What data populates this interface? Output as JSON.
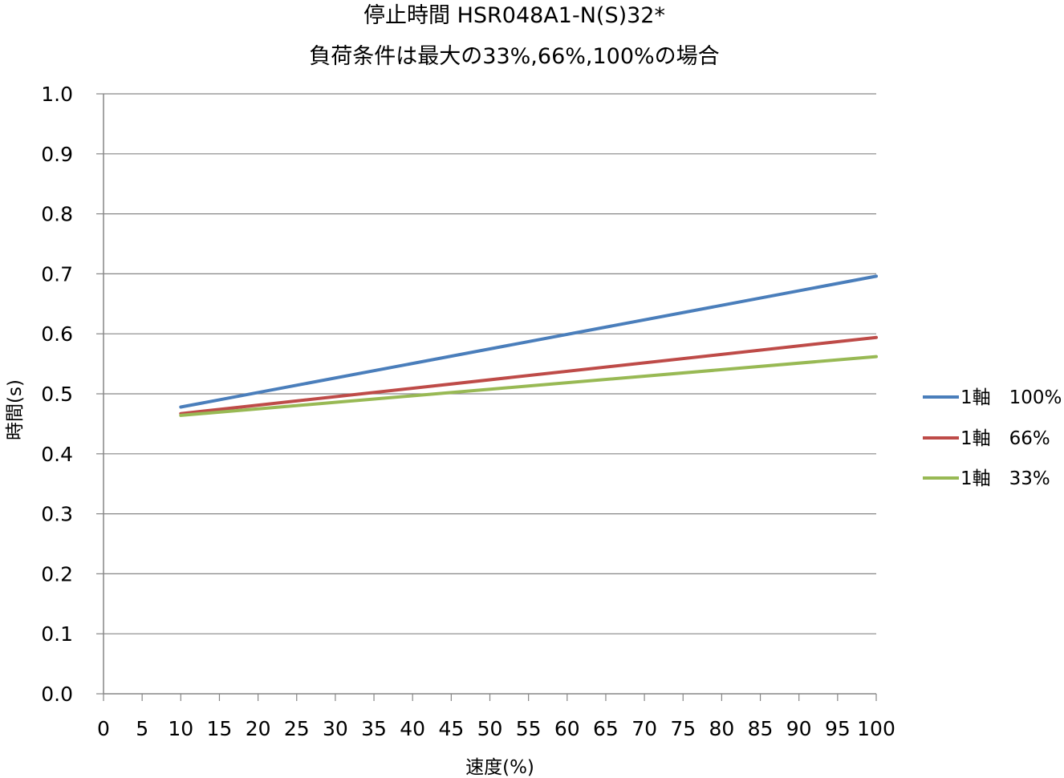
{
  "chart_data": {
    "type": "line",
    "title_line1": "停止時間 HSR048A1-N(S)32*",
    "title_line2": "負荷条件は最大の33%,66%,100%の場合",
    "xlabel": "速度(%)",
    "ylabel": "時間(s)",
    "xlim": [
      0,
      100
    ],
    "ylim": [
      0.0,
      1.0
    ],
    "x_ticks": [
      0,
      5,
      10,
      15,
      20,
      25,
      30,
      35,
      40,
      45,
      50,
      55,
      60,
      65,
      70,
      75,
      80,
      85,
      90,
      95,
      100
    ],
    "y_ticks": [
      "0.0",
      "0.1",
      "0.2",
      "0.3",
      "0.4",
      "0.5",
      "0.6",
      "0.7",
      "0.8",
      "0.9",
      "1.0"
    ],
    "grid": "horizontal",
    "legend_position": "right",
    "series": [
      {
        "name": "1軸　100%",
        "color": "#4A7EBB",
        "x": [
          10,
          100
        ],
        "y": [
          0.478,
          0.696
        ]
      },
      {
        "name": "1軸　66%",
        "color": "#BE4B48",
        "x": [
          10,
          100
        ],
        "y": [
          0.467,
          0.594
        ]
      },
      {
        "name": "1軸　33%",
        "color": "#98B954",
        "x": [
          10,
          100
        ],
        "y": [
          0.464,
          0.562
        ]
      }
    ]
  }
}
